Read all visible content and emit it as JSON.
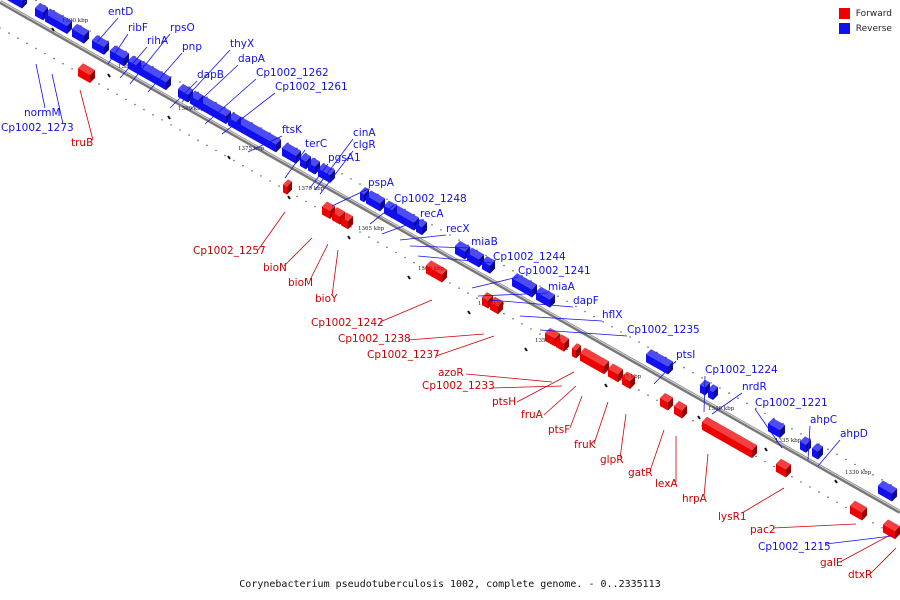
{
  "caption": "Corynebacterium pseudotuberculosis 1002, complete genome. - 0..2335113",
  "legend": [
    {
      "label": "Forward",
      "color": "#ee0000"
    },
    {
      "label": "Reverse",
      "color": "#1010ee"
    }
  ],
  "colors": {
    "forward": "#ee0000",
    "reverse": "#1010ee",
    "backbone": "#777777"
  },
  "ticks": [
    "1390 kbp",
    "1385 kbp",
    "1380 kbp",
    "1375 kbp",
    "1370 kbp",
    "1365 kbp",
    "1360 kbp",
    "1355 kbp",
    "1350 kbp",
    "1345 kbp",
    "1340 kbp",
    "1335 kbp",
    "1330 kbp"
  ],
  "reverse_labels": [
    "entD",
    "ribF",
    "rihA",
    "rpsO",
    "pnp",
    "thyX",
    "dapB",
    "dapA",
    "Cp1002_1262",
    "Cp1002_1261",
    "ftsK",
    "terC",
    "cinA",
    "clgR",
    "pgsA1",
    "pspA",
    "Cp1002_1248",
    "recA",
    "recX",
    "miaB",
    "Cp1002_1244",
    "Cp1002_1241",
    "miaA",
    "dapF",
    "hflX",
    "Cp1002_1235",
    "ptsI",
    "Cp1002_1224",
    "nrdR",
    "Cp1002_1221",
    "ahpC",
    "ahpD",
    "normM",
    "Cp1002_1273",
    "Cp1002_1215"
  ],
  "forward_labels": [
    "truB",
    "Cp1002_1257",
    "bioN",
    "bioM",
    "bioY",
    "Cp1002_1242",
    "Cp1002_1238",
    "Cp1002_1237",
    "azoR",
    "Cp1002_1233",
    "ptsH",
    "fruA",
    "ptsF",
    "fruK",
    "glpR",
    "gatR",
    "lexA",
    "hrpA",
    "lysR1",
    "pac2",
    "galE",
    "dtxR"
  ]
}
